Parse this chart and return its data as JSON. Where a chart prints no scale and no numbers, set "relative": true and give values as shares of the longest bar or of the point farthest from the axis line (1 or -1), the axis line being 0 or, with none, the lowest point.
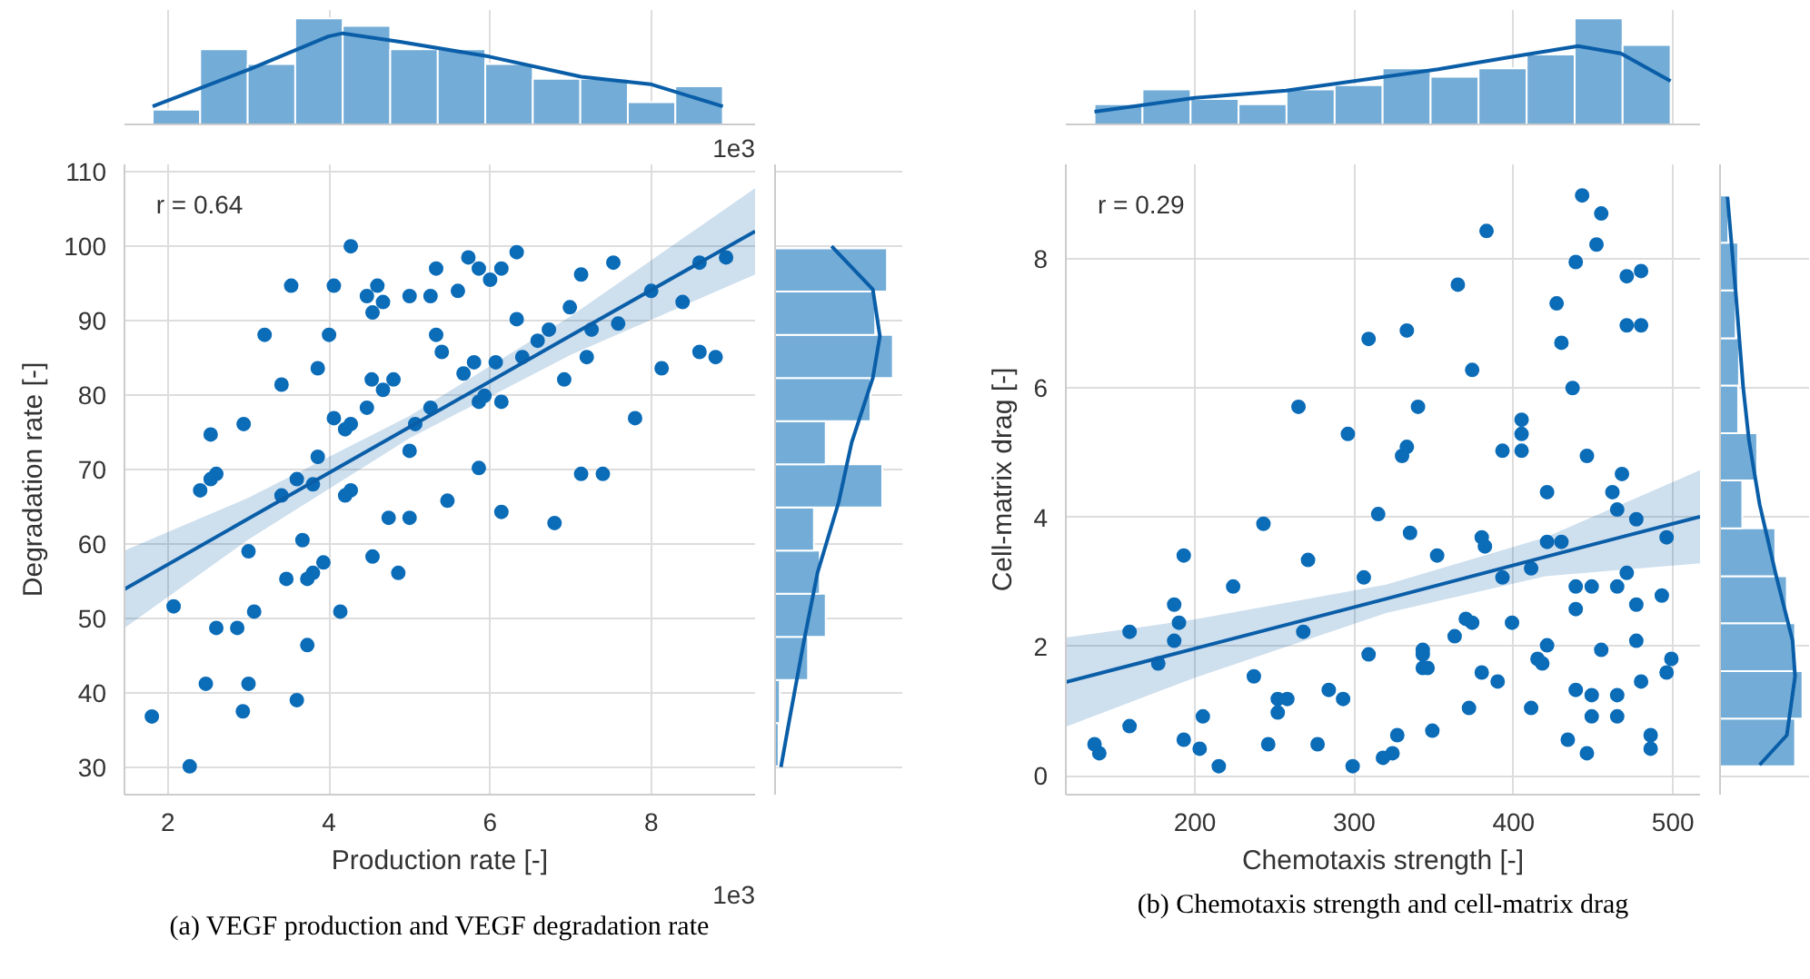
{
  "chart_data": [
    {
      "type": "histogram",
      "relative": true,
      "color": "#72acd7",
      "xlim": [
        1.46,
        9.29
      ],
      "xticks": [
        2,
        4,
        6,
        8
      ],
      "grid": "x",
      "tick_labels": false,
      "annotations": [
        "1e3"
      ],
      "bins": [
        1.81,
        2.4,
        2.99,
        3.58,
        4.17,
        4.76,
        5.35,
        5.94,
        6.53,
        7.12,
        7.71,
        8.3,
        8.89
      ],
      "values": [
        0.14,
        0.71,
        0.57,
        1,
        0.93,
        0.71,
        0.71,
        0.57,
        0.43,
        0.43,
        0.21,
        0.36
      ],
      "series": [
        {
          "type": "line",
          "color": "#0a5ea8",
          "x": [
            1.81,
            3.01,
            3.99,
            4.17,
            4.88,
            5.99,
            7.13,
            7.99,
            8.89
          ],
          "values": [
            0.17,
            0.52,
            0.83,
            0.86,
            0.78,
            0.64,
            0.45,
            0.38,
            0.17
          ]
        }
      ]
    },
    {
      "type": "histogram",
      "relative": true,
      "color": "#72acd7",
      "xlim": [
        119,
        517
      ],
      "xticks": [
        200,
        300,
        400,
        500
      ],
      "grid": "x",
      "tick_labels": false,
      "bins": [
        137,
        167.1,
        197.3,
        227.4,
        257.5,
        287.7,
        317.8,
        347.9,
        378,
        408.2,
        438.3,
        468.4,
        498.5
      ],
      "values": [
        0.19,
        0.33,
        0.24,
        0.19,
        0.33,
        0.37,
        0.53,
        0.45,
        0.53,
        0.66,
        1,
        0.75
      ],
      "series": [
        {
          "type": "line",
          "color": "#0a5ea8",
          "x": [
            137,
            200,
            257.3,
            300,
            352.7,
            400,
            440.5,
            467.2,
            498.5
          ],
          "values": [
            0.12,
            0.25,
            0.32,
            0.41,
            0.52,
            0.64,
            0.74,
            0.67,
            0.41
          ]
        }
      ]
    },
    {
      "type": "scatter",
      "title": "(a) VEGF production and VEGF degradation rate",
      "xlabel": "Production rate [-]",
      "ylabel": "Degradation rate [-]",
      "annotations": [
        "r = 0.64",
        "1e3"
      ],
      "xlim": [
        1.46,
        9.29
      ],
      "ylim": [
        26.3,
        111
      ],
      "xticks": [
        2,
        4,
        6,
        8
      ],
      "yticks": [
        30,
        40,
        50,
        60,
        70,
        80,
        90,
        100,
        110
      ],
      "grid": true,
      "series": [
        {
          "type": "scatter",
          "marker": "circle",
          "color": "#0b6cb8",
          "x": [
            4.27,
            6.33,
            5.73,
            8.93,
            7.53,
            8.6,
            5.33,
            5.86,
            6.14,
            7.13,
            6.0,
            3.53,
            4.06,
            4.6,
            5.6,
            4.47,
            5.0,
            5.26,
            8.0,
            4.67,
            4.54,
            8.39,
            6.99,
            6.33,
            7.59,
            3.2,
            4.0,
            5.33,
            6.73,
            7.26,
            6.59,
            5.4,
            7.2,
            6.4,
            8.6,
            8.8,
            3.86,
            5.8,
            6.07,
            8.13,
            5.67,
            4.53,
            4.8,
            6.92,
            3.41,
            4.67,
            5.93,
            5.86,
            6.14,
            4.47,
            5.26,
            7.8,
            2.94,
            4.06,
            4.27,
            5.07,
            4.2,
            2.53,
            5.0,
            3.86,
            5.86,
            2.6,
            7.13,
            7.4,
            2.53,
            3.6,
            3.8,
            2.4,
            4.27,
            3.41,
            4.2,
            5.47,
            6.14,
            4.74,
            5.0,
            6.8,
            3.67,
            3.0,
            4.54,
            3.93,
            3.8,
            4.86,
            3.47,
            3.73,
            2.07,
            3.07,
            4.14,
            2.6,
            2.86,
            3.73,
            2.47,
            3.0,
            3.6,
            2.93,
            1.8,
            2.27
          ],
          "values": [
            100,
            99.2,
            98.5,
            98.5,
            97.8,
            97.8,
            97,
            97,
            97,
            96.2,
            95.5,
            94.7,
            94.7,
            94.7,
            94,
            93.3,
            93.3,
            93.3,
            94,
            92.5,
            91.1,
            92.5,
            91.8,
            90.2,
            89.6,
            88.1,
            88.1,
            88.1,
            88.8,
            88.8,
            87.3,
            85.8,
            85.1,
            85.1,
            85.8,
            85.1,
            83.6,
            84.4,
            84.4,
            83.6,
            82.9,
            82.1,
            82.1,
            82.1,
            81.4,
            80.7,
            79.9,
            79.1,
            79.1,
            78.3,
            78.3,
            76.9,
            76.1,
            76.9,
            76.1,
            76.1,
            75.4,
            74.7,
            72.5,
            71.7,
            70.2,
            69.4,
            69.4,
            69.4,
            68.7,
            68.7,
            68,
            67.2,
            67.2,
            66.5,
            66.5,
            65.8,
            64.3,
            63.5,
            63.5,
            62.8,
            60.5,
            59,
            58.3,
            57.5,
            56.1,
            56.1,
            55.3,
            55.3,
            51.6,
            50.9,
            50.9,
            48.7,
            48.7,
            46.4,
            41.2,
            41.2,
            39,
            37.5,
            36.8,
            30.1
          ]
        },
        {
          "type": "line",
          "color": "#0a5ea8",
          "x": [
            1.46,
            3,
            5,
            7,
            9.29
          ],
          "values": [
            53.9,
            63.4,
            75.7,
            88.0,
            102
          ],
          "lower": [
            48.7,
            60.6,
            74.2,
            85.4,
            96.2
          ],
          "upper": [
            59.1,
            66.2,
            77.2,
            90.6,
            107.8
          ]
        }
      ]
    },
    {
      "type": "histogram",
      "orientation": "horizontal",
      "relative": true,
      "color": "#72acd7",
      "ylim": [
        26.3,
        111
      ],
      "yticks": [
        30,
        40,
        50,
        60,
        70,
        80,
        90,
        100,
        110
      ],
      "grid": "y",
      "tick_labels": false,
      "bins": [
        30.1,
        35.9,
        41.7,
        47.5,
        53.3,
        59.1,
        64.9,
        70.7,
        76.5,
        82.3,
        88.1,
        93.9,
        99.7
      ],
      "values": [
        0.03,
        0.04,
        0.28,
        0.43,
        0.38,
        0.33,
        0.91,
        0.43,
        0.81,
        1,
        0.85,
        0.95
      ],
      "series": [
        {
          "type": "line",
          "color": "#0a5ea8",
          "x": [
            100,
            94.2,
            87.9,
            82.3,
            73.6,
            65.6,
            56.1,
            46.5,
            36.2,
            30.0
          ],
          "values": [
            0.48,
            0.83,
            0.89,
            0.83,
            0.65,
            0.54,
            0.36,
            0.24,
            0.12,
            0.05
          ]
        }
      ]
    },
    {
      "type": "scatter",
      "title": "(b) Chemotaxis strength and cell-matrix drag",
      "xlabel": "Chemotaxis strength [-]",
      "ylabel": "Cell-matrix drag [-]",
      "annotations": [
        "r = 0.29"
      ],
      "xlim": [
        119,
        517
      ],
      "ylim": [
        -0.29,
        9.46
      ],
      "xticks": [
        200,
        300,
        400,
        500
      ],
      "yticks": [
        0,
        2,
        4,
        6,
        8
      ],
      "grid": true,
      "series": [
        {
          "type": "scatter",
          "marker": "circle",
          "color": "#0b6cb8",
          "x": [
            443,
            455,
            383,
            452,
            439,
            471,
            480,
            365,
            427,
            471,
            480,
            333,
            309,
            430,
            374,
            437,
            265,
            340,
            405,
            296,
            405,
            333,
            330,
            393,
            405,
            446,
            468,
            462,
            421,
            465,
            315,
            477,
            243,
            335,
            380,
            496,
            382,
            421,
            430,
            193,
            352,
            271,
            411,
            471,
            306,
            393,
            224,
            439,
            449,
            465,
            493,
            187,
            439,
            477,
            370,
            374,
            190,
            399,
            363,
            159,
            268,
            187,
            477,
            421,
            343,
            455,
            309,
            343,
            415,
            499,
            177,
            418,
            343,
            346,
            380,
            496,
            237,
            390,
            480,
            284,
            439,
            449,
            465,
            252,
            258,
            293,
            372,
            411,
            252,
            205,
            449,
            465,
            159,
            349,
            327,
            486,
            193,
            434,
            137,
            246,
            277,
            203,
            486,
            140,
            324,
            446,
            318,
            215,
            299
          ],
          "values": [
            8.98,
            8.7,
            8.43,
            8.22,
            7.95,
            7.73,
            7.81,
            7.6,
            7.31,
            6.97,
            6.97,
            6.89,
            6.76,
            6.7,
            6.28,
            6.0,
            5.71,
            5.71,
            5.51,
            5.29,
            5.29,
            5.09,
            4.95,
            5.03,
            5.03,
            4.95,
            4.67,
            4.39,
            4.39,
            4.12,
            4.05,
            3.97,
            3.9,
            3.76,
            3.69,
            3.69,
            3.55,
            3.62,
            3.62,
            3.41,
            3.41,
            3.34,
            3.21,
            3.14,
            3.07,
            3.07,
            2.93,
            2.93,
            2.93,
            2.93,
            2.79,
            2.65,
            2.58,
            2.65,
            2.43,
            2.37,
            2.37,
            2.37,
            2.16,
            2.23,
            2.23,
            2.09,
            2.09,
            2.02,
            1.95,
            1.95,
            1.88,
            1.88,
            1.81,
            1.81,
            1.74,
            1.74,
            1.67,
            1.67,
            1.6,
            1.6,
            1.54,
            1.46,
            1.46,
            1.33,
            1.33,
            1.25,
            1.25,
            1.19,
            1.19,
            1.19,
            1.05,
            1.05,
            0.98,
            0.92,
            0.92,
            0.92,
            0.77,
            0.7,
            0.63,
            0.63,
            0.56,
            0.56,
            0.49,
            0.49,
            0.49,
            0.42,
            0.42,
            0.35,
            0.35,
            0.35,
            0.28,
            0.15,
            0.15
          ]
        },
        {
          "type": "line",
          "color": "#0a5ea8",
          "x": [
            119,
            200,
            320,
            420,
            517
          ],
          "values": [
            1.45,
            1.97,
            2.74,
            3.39,
            4.01
          ],
          "lower": [
            0.76,
            1.52,
            2.52,
            3.09,
            3.29
          ],
          "upper": [
            2.14,
            2.42,
            2.96,
            3.69,
            4.73
          ]
        }
      ]
    },
    {
      "type": "histogram",
      "orientation": "horizontal",
      "relative": true,
      "color": "#72acd7",
      "ylim": [
        -0.29,
        9.46
      ],
      "yticks": [
        0,
        2,
        4,
        6,
        8
      ],
      "grid": "y",
      "tick_labels": false,
      "bins": [
        0.15,
        0.886,
        1.62,
        2.36,
        3.09,
        3.83,
        4.57,
        5.3,
        6.04,
        6.77,
        7.51,
        8.25,
        8.98
      ],
      "values": [
        0.91,
        1,
        0.91,
        0.81,
        0.67,
        0.27,
        0.45,
        0.22,
        0.23,
        0.19,
        0.22,
        0.1
      ],
      "series": [
        {
          "type": "line",
          "color": "#0a5ea8",
          "x": [
            8.96,
            7.48,
            6.02,
            5.2,
            4.2,
            3.1,
            2.09,
            1.54,
            0.63,
            0.17
          ],
          "values": [
            0.09,
            0.19,
            0.28,
            0.35,
            0.48,
            0.68,
            0.88,
            0.91,
            0.81,
            0.48
          ]
        }
      ]
    }
  ]
}
